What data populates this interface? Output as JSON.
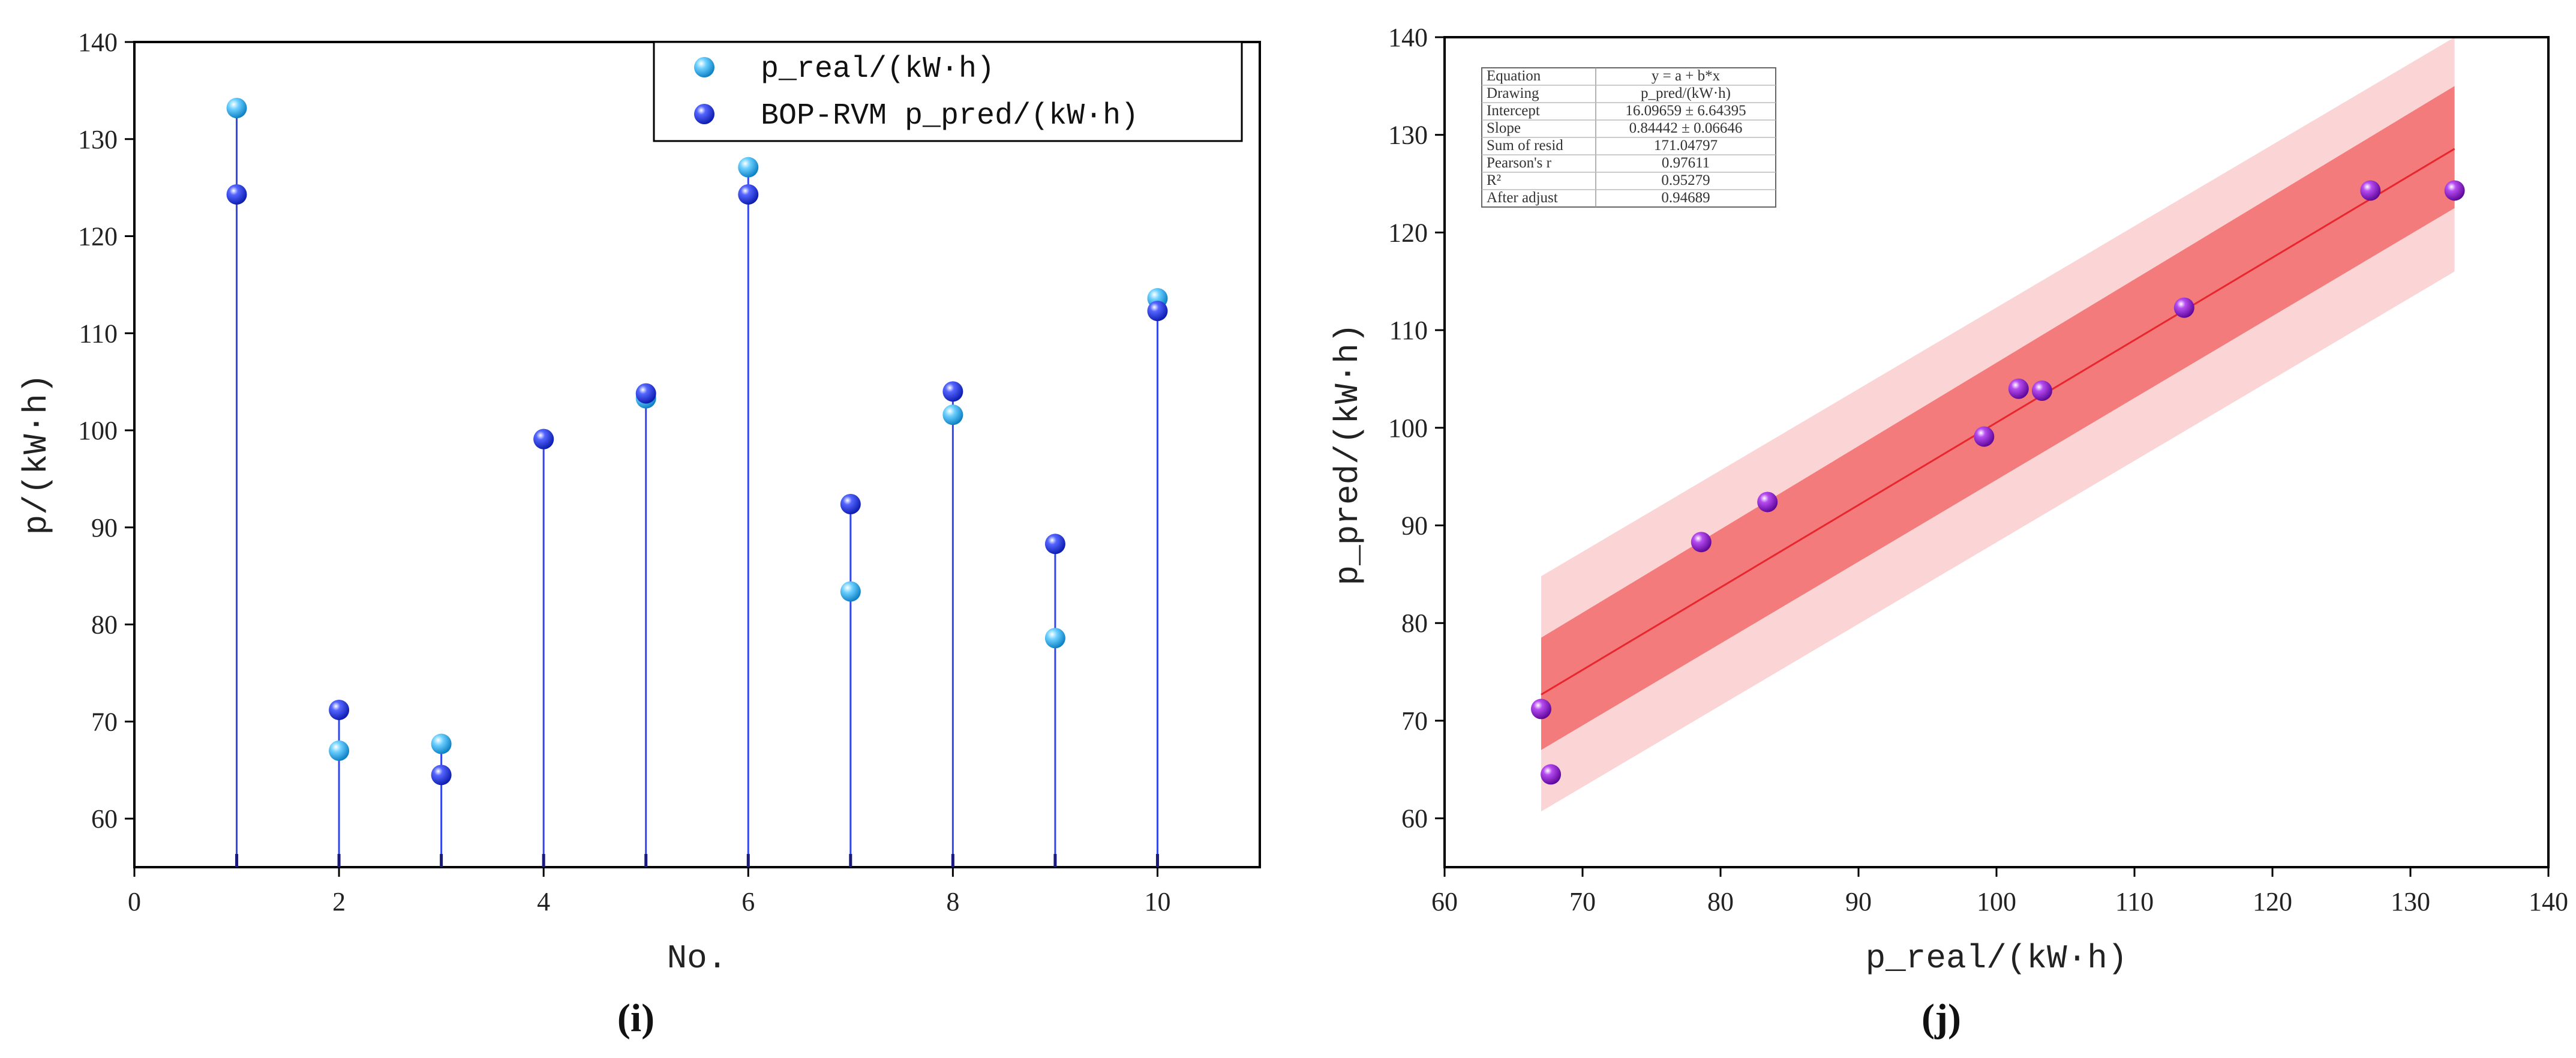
{
  "chart_data": [
    {
      "type": "stem",
      "panel_label": "(i)",
      "xlabel": "No.",
      "ylabel": "p/(kW·h)",
      "xlim": [
        0,
        11
      ],
      "ylim": [
        55,
        140
      ],
      "xticks": [
        0,
        2,
        4,
        6,
        8,
        10
      ],
      "yticks": [
        60,
        70,
        80,
        90,
        100,
        110,
        120,
        130,
        140
      ],
      "categories": [
        1,
        2,
        3,
        4,
        5,
        6,
        7,
        8,
        9,
        10
      ],
      "series": [
        {
          "name": "p_real/(kW·h)",
          "color": "#29a9e8",
          "values": [
            133.2,
            67.0,
            67.7,
            99.1,
            103.3,
            127.1,
            83.4,
            101.6,
            78.6,
            113.6
          ]
        },
        {
          "name": "BOP-RVM p_pred/(kW·h)",
          "color": "#2a3fe0",
          "values": [
            124.3,
            71.2,
            64.5,
            99.1,
            103.8,
            124.3,
            92.4,
            104.0,
            88.3,
            112.3
          ]
        }
      ],
      "legend_position": "top-right"
    },
    {
      "type": "scatter",
      "panel_label": "(j)",
      "xlabel": "p_real/(kW·h)",
      "ylabel": "p_pred/(kW·h)",
      "xlim": [
        60,
        140
      ],
      "ylim": [
        55,
        140
      ],
      "xticks": [
        60,
        70,
        80,
        90,
        100,
        110,
        120,
        130,
        140
      ],
      "yticks": [
        60,
        70,
        80,
        90,
        100,
        110,
        120,
        130,
        140
      ],
      "points": {
        "x": [
          67.0,
          67.7,
          78.6,
          83.4,
          99.1,
          101.6,
          103.3,
          113.6,
          127.1,
          133.2
        ],
        "y": [
          71.2,
          64.5,
          88.3,
          92.4,
          99.1,
          104.0,
          103.8,
          112.3,
          124.3,
          124.3
        ],
        "color": "#8a12d6"
      },
      "fit": {
        "intercept": 16.09659,
        "slope": 0.84442,
        "x_range": [
          67.0,
          133.2
        ],
        "color": "#e8262e"
      },
      "confidence_band": {
        "color": "#f25c5c",
        "lower_at_start": 67.0,
        "upper_at_start": 78.5,
        "lower_at_end": 122.5,
        "upper_at_end": 135.0
      },
      "prediction_band": {
        "color": "#fbd5d5",
        "lower_at_start": 60.7,
        "upper_at_start": 84.8,
        "lower_at_end": 116.0,
        "upper_at_end": 141.0
      },
      "stats_table": [
        {
          "label": "Equation",
          "value": "y = a + b*x"
        },
        {
          "label": "Drawing",
          "value": "p_pred/(kW·h)"
        },
        {
          "label": "Intercept",
          "value": "16.09659 ± 6.64395"
        },
        {
          "label": "Slope",
          "value": "0.84442 ± 0.06646"
        },
        {
          "label": "Sum of resid",
          "value": "171.04797"
        },
        {
          "label": "Pearson's r",
          "value": "0.97611"
        },
        {
          "label": "R²",
          "value": "0.95279"
        },
        {
          "label": "After adjust",
          "value": "0.94689"
        }
      ]
    }
  ]
}
